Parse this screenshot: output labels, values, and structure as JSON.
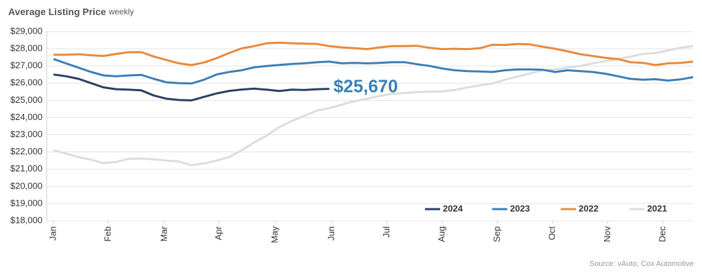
{
  "chart_data": {
    "type": "line",
    "title": "Average Listing Price",
    "subtitle": "weekly",
    "annotation": "$25,670",
    "source": "Source: vAuto, Cox Automotive",
    "x": [
      0,
      1,
      2,
      3,
      4,
      5,
      6,
      7,
      8,
      9,
      10,
      11,
      12,
      13,
      14,
      15,
      16,
      17,
      18,
      19,
      20,
      21,
      22,
      23,
      24,
      25,
      26,
      27,
      28,
      29,
      30,
      31,
      32,
      33,
      34,
      35,
      36,
      37,
      38,
      39,
      40,
      41,
      42,
      43,
      44,
      45,
      46,
      47,
      48,
      49,
      50,
      51
    ],
    "xlim": [
      0,
      51
    ],
    "xticks": [
      {
        "value": 0,
        "label": "Jan"
      },
      {
        "value": 4.37,
        "label": "Feb"
      },
      {
        "value": 8.85,
        "label": "Mar"
      },
      {
        "value": 13.2,
        "label": "Apr"
      },
      {
        "value": 17.7,
        "label": "May"
      },
      {
        "value": 22.2,
        "label": "Jun"
      },
      {
        "value": 26.6,
        "label": "Jul"
      },
      {
        "value": 31.0,
        "label": "Aug"
      },
      {
        "value": 35.4,
        "label": "Sep"
      },
      {
        "value": 39.8,
        "label": "Oct"
      },
      {
        "value": 44.2,
        "label": "Nov"
      },
      {
        "value": 48.6,
        "label": "Dec"
      }
    ],
    "ylim": [
      18000,
      29000
    ],
    "yticks": [
      {
        "value": 18000,
        "label": "$18,000"
      },
      {
        "value": 19000,
        "label": "$19,000"
      },
      {
        "value": 20000,
        "label": "$20,000"
      },
      {
        "value": 21000,
        "label": "$21,000"
      },
      {
        "value": 22000,
        "label": "$22,000"
      },
      {
        "value": 23000,
        "label": "$23,000"
      },
      {
        "value": 24000,
        "label": "$24,000"
      },
      {
        "value": 25000,
        "label": "$25,000"
      },
      {
        "value": 26000,
        "label": "$26,000"
      },
      {
        "value": 27000,
        "label": "$27,000"
      },
      {
        "value": 28000,
        "label": "$28,000"
      },
      {
        "value": 29000,
        "label": "$29,000"
      }
    ],
    "grid": true,
    "legend": "bottom-right",
    "series": [
      {
        "name": "2024",
        "color": "#2a3f5f",
        "values": [
          26500,
          26400,
          26250,
          26000,
          25750,
          25650,
          25620,
          25580,
          25280,
          25100,
          25020,
          25000,
          25200,
          25400,
          25550,
          25630,
          25680,
          25620,
          25540,
          25620,
          25600,
          25650,
          25670,
          null,
          null,
          null,
          null,
          null,
          null,
          null,
          null,
          null,
          null,
          null,
          null,
          null,
          null,
          null,
          null,
          null,
          null,
          null,
          null,
          null,
          null,
          null,
          null,
          null,
          null,
          null,
          null,
          null
        ]
      },
      {
        "name": "2023",
        "color": "#3a7fb8",
        "values": [
          27400,
          27150,
          26900,
          26650,
          26450,
          26400,
          26450,
          26480,
          26250,
          26050,
          26000,
          25980,
          26200,
          26500,
          26650,
          26750,
          26920,
          27000,
          27060,
          27120,
          27150,
          27220,
          27250,
          27150,
          27180,
          27150,
          27180,
          27220,
          27220,
          27100,
          27000,
          26850,
          26750,
          26700,
          26680,
          26650,
          26750,
          26800,
          26800,
          26780,
          26650,
          26750,
          26700,
          26650,
          26550,
          26400,
          26250,
          26200,
          26230,
          26150,
          26220,
          26350
        ]
      },
      {
        "name": "2022",
        "color": "#e8893a",
        "values": [
          27650,
          27650,
          27680,
          27620,
          27580,
          27700,
          27800,
          27800,
          27550,
          27350,
          27150,
          27050,
          27200,
          27450,
          27750,
          28020,
          28150,
          28320,
          28350,
          28320,
          28300,
          28280,
          28150,
          28080,
          28030,
          27980,
          28080,
          28150,
          28150,
          28170,
          28050,
          27980,
          28000,
          27980,
          28030,
          28230,
          28220,
          28280,
          28250,
          28120,
          28000,
          27850,
          27680,
          27580,
          27470,
          27400,
          27220,
          27180,
          27050,
          27150,
          27180,
          27250
        ]
      },
      {
        "name": "2021",
        "color": "#dcdcdc",
        "values": [
          22100,
          21900,
          21700,
          21550,
          21350,
          21420,
          21600,
          21620,
          21580,
          21500,
          21450,
          21230,
          21330,
          21500,
          21700,
          22100,
          22550,
          22950,
          23450,
          23800,
          24100,
          24400,
          24550,
          24750,
          24950,
          25100,
          25250,
          25380,
          25430,
          25480,
          25500,
          25520,
          25600,
          25750,
          25870,
          25980,
          26200,
          26380,
          26560,
          26750,
          26800,
          26900,
          27000,
          27150,
          27280,
          27400,
          27540,
          27700,
          27750,
          27900,
          28060,
          28150
        ]
      }
    ]
  }
}
